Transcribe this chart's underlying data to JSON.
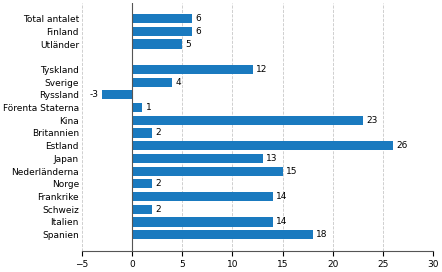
{
  "categories": [
    "Total antalet",
    "Finland",
    "Utländer",
    "",
    "Tyskland",
    "Sverige",
    "Ryssland",
    "Förenta Staterna",
    "Kina",
    "Britannien",
    "Estland",
    "Japan",
    "Nederländerna",
    "Norge",
    "Frankrike",
    "Schweiz",
    "Italien",
    "Spanien"
  ],
  "values": [
    6,
    6,
    5,
    null,
    12,
    4,
    -3,
    1,
    23,
    2,
    26,
    13,
    15,
    2,
    14,
    2,
    14,
    18
  ],
  "bar_color": "#1a7abf",
  "xlim": [
    -5,
    30
  ],
  "xticks": [
    -5,
    0,
    5,
    10,
    15,
    20,
    25,
    30
  ],
  "background_color": "#ffffff",
  "grid_color": "#c8c8c8"
}
